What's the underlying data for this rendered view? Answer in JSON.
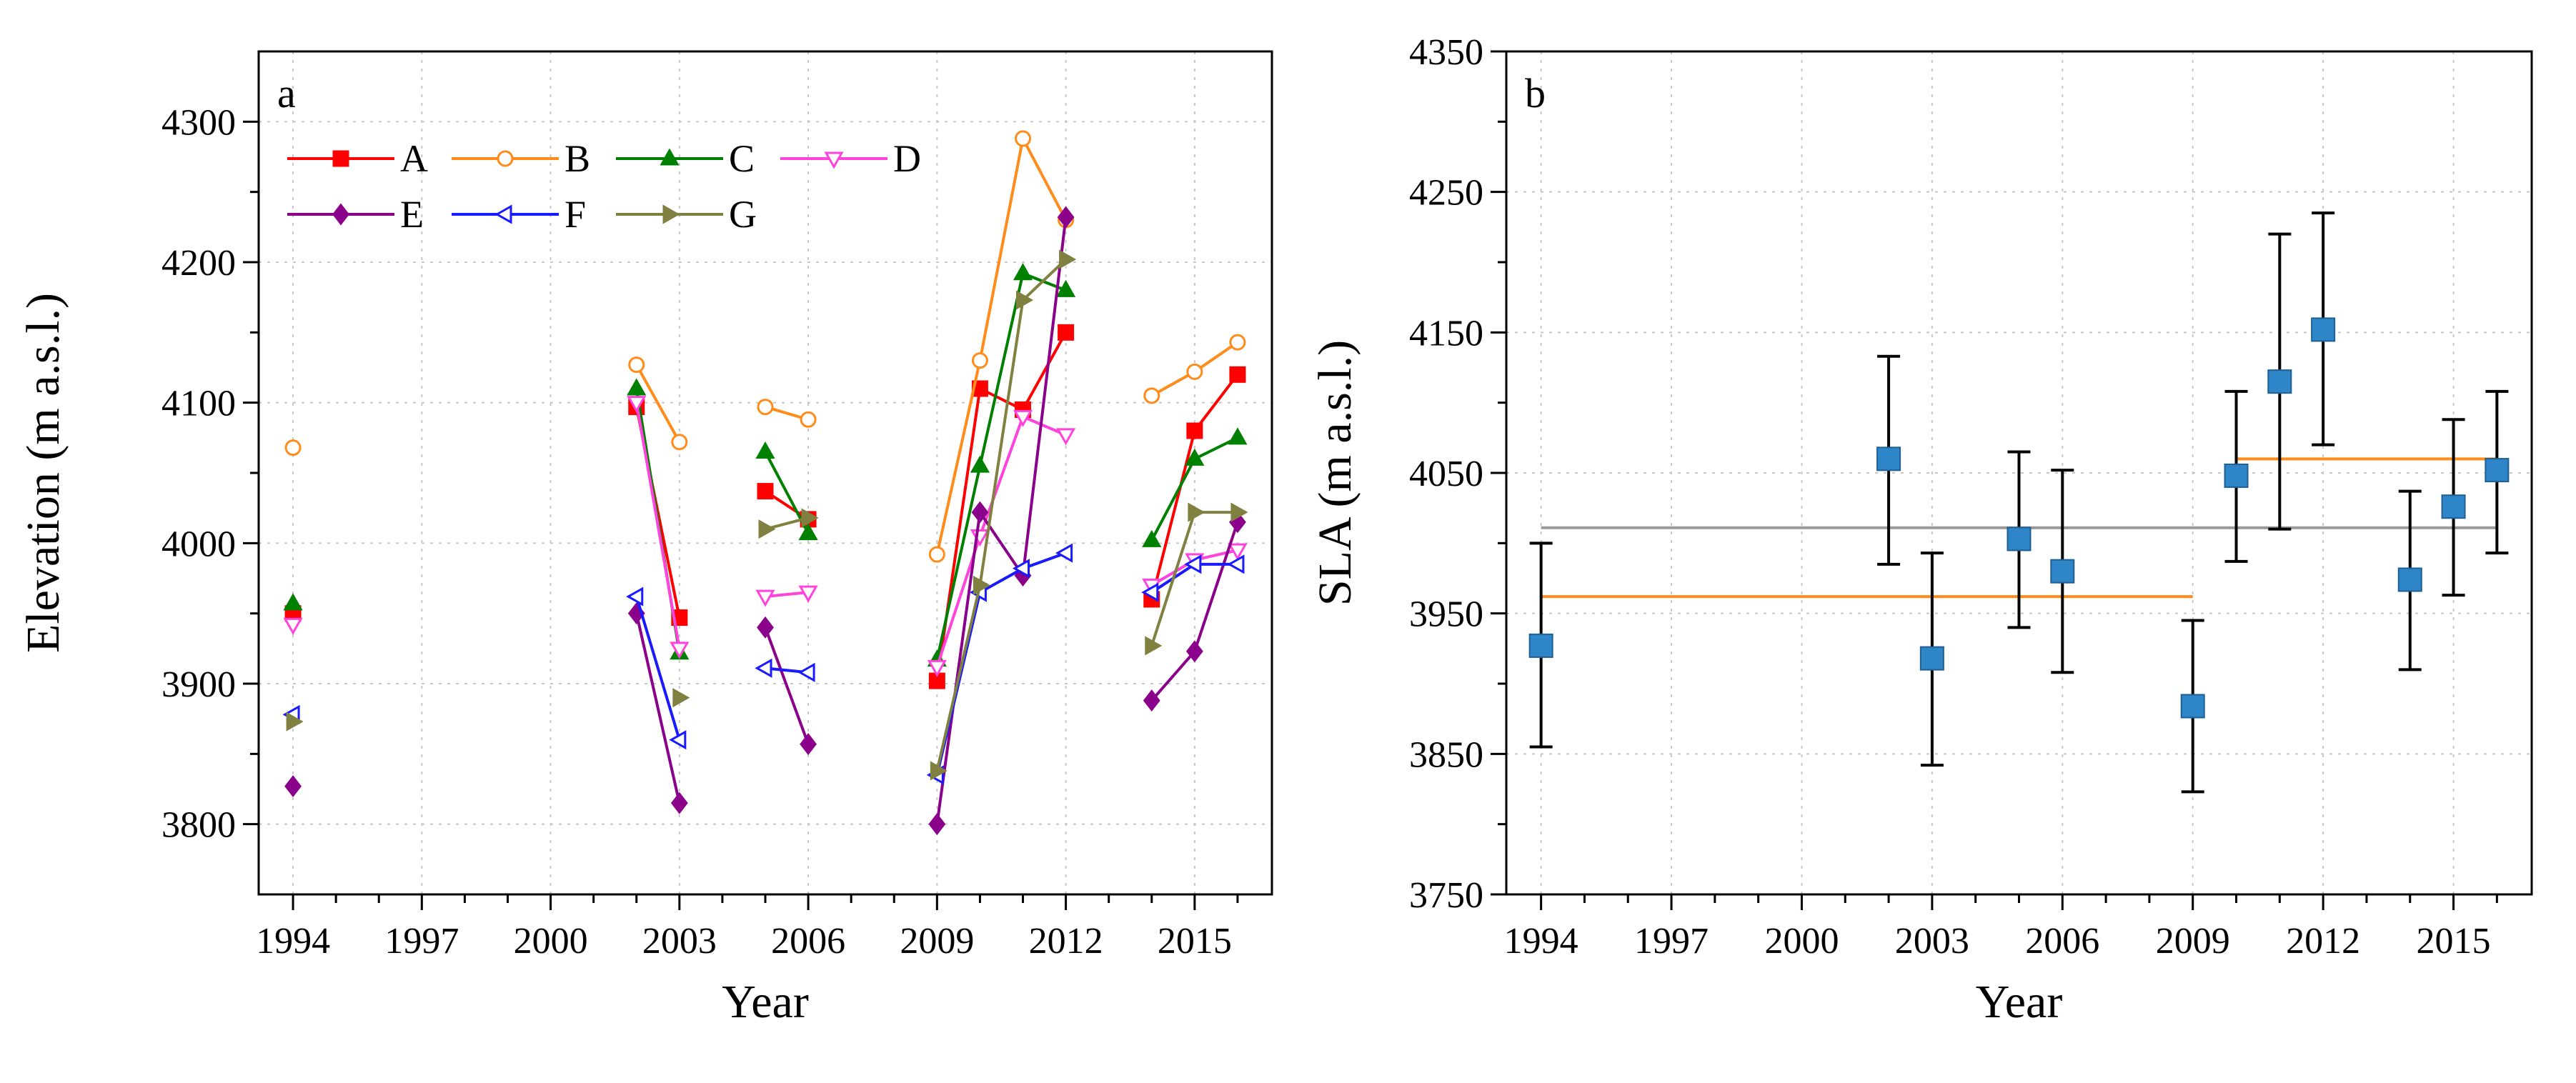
{
  "chart_data": [
    {
      "id": "a",
      "type": "line",
      "panel_label": "a",
      "xlabel": "Year",
      "ylabel": "Elevation (m a.s.l.)",
      "xlim": [
        1993.2,
        2016.8
      ],
      "ylim": [
        3750,
        4350
      ],
      "xticks": [
        1994,
        1997,
        2000,
        2003,
        2006,
        2009,
        2012,
        2015
      ],
      "yticks": [
        3800,
        3900,
        4000,
        4100,
        4200,
        4300
      ],
      "grid": true,
      "legend_position": "top-left",
      "series": [
        {
          "name": "A",
          "color": "#ff0000",
          "marker": "square-filled",
          "segments": [
            [
              [
                1994,
                3950
              ]
            ],
            [
              [
                2002,
                4097
              ],
              [
                2003,
                3947
              ]
            ],
            [
              [
                2005,
                4037
              ],
              [
                2006,
                4017
              ]
            ],
            [
              [
                2009,
                3902
              ],
              [
                2010,
                4110
              ],
              [
                2011,
                4095
              ],
              [
                2012,
                4150
              ]
            ],
            [
              [
                2014,
                3960
              ],
              [
                2015,
                4080
              ],
              [
                2016,
                4120
              ]
            ]
          ]
        },
        {
          "name": "B",
          "color": "#ff8c1a",
          "marker": "circle-open",
          "segments": [
            [
              [
                1994,
                4068
              ]
            ],
            [
              [
                2002,
                4127
              ],
              [
                2003,
                4072
              ]
            ],
            [
              [
                2005,
                4097
              ],
              [
                2006,
                4088
              ]
            ],
            [
              [
                2009,
                3992
              ],
              [
                2010,
                4130
              ],
              [
                2011,
                4288
              ],
              [
                2012,
                4230
              ]
            ],
            [
              [
                2014,
                4105
              ],
              [
                2015,
                4122
              ],
              [
                2016,
                4143
              ]
            ]
          ]
        },
        {
          "name": "C",
          "color": "#008000",
          "marker": "triangle-up-filled",
          "segments": [
            [
              [
                1994,
                3957
              ]
            ],
            [
              [
                2002,
                4110
              ],
              [
                2003,
                3922
              ]
            ],
            [
              [
                2005,
                4065
              ],
              [
                2006,
                4007
              ]
            ],
            [
              [
                2009,
                3917
              ],
              [
                2010,
                4055
              ],
              [
                2011,
                4192
              ],
              [
                2012,
                4180
              ]
            ],
            [
              [
                2014,
                4002
              ],
              [
                2015,
                4060
              ],
              [
                2016,
                4075
              ]
            ]
          ]
        },
        {
          "name": "D",
          "color": "#ff44dd",
          "marker": "triangle-down-open",
          "segments": [
            [
              [
                1994,
                3942
              ]
            ],
            [
              [
                2002,
                4100
              ],
              [
                2003,
                3925
              ]
            ],
            [
              [
                2005,
                3962
              ],
              [
                2006,
                3965
              ]
            ],
            [
              [
                2009,
                3912
              ],
              [
                2010,
                4005
              ],
              [
                2011,
                4090
              ],
              [
                2012,
                4077
              ]
            ],
            [
              [
                2014,
                3970
              ],
              [
                2015,
                3988
              ],
              [
                2016,
                3995
              ]
            ]
          ]
        },
        {
          "name": "E",
          "color": "#8b008b",
          "marker": "diamond-filled",
          "segments": [
            [
              [
                1994,
                3827
              ]
            ],
            [
              [
                2002,
                3950
              ],
              [
                2003,
                3815
              ]
            ],
            [
              [
                2005,
                3940
              ],
              [
                2006,
                3857
              ]
            ],
            [
              [
                2009,
                3800
              ],
              [
                2010,
                4022
              ],
              [
                2011,
                3977
              ],
              [
                2012,
                4232
              ]
            ],
            [
              [
                2014,
                3888
              ],
              [
                2015,
                3923
              ],
              [
                2016,
                4015
              ]
            ]
          ]
        },
        {
          "name": "F",
          "color": "#1a1aff",
          "marker": "triangle-left-open",
          "segments": [
            [
              [
                1994,
                3878
              ]
            ],
            [
              [
                2002,
                3962
              ],
              [
                2003,
                3860
              ]
            ],
            [
              [
                2005,
                3911
              ],
              [
                2006,
                3908
              ]
            ],
            [
              [
                2009,
                3835
              ],
              [
                2010,
                3965
              ],
              [
                2011,
                3982
              ],
              [
                2012,
                3993
              ]
            ],
            [
              [
                2014,
                3965
              ],
              [
                2015,
                3985
              ],
              [
                2016,
                3985
              ]
            ]
          ]
        },
        {
          "name": "G",
          "color": "#808040",
          "marker": "triangle-right-filled",
          "segments": [
            [
              [
                1994,
                3873
              ]
            ],
            [
              [
                2003,
                3890
              ]
            ],
            [
              [
                2005,
                4010
              ],
              [
                2006,
                4018
              ]
            ],
            [
              [
                2009,
                3838
              ],
              [
                2010,
                3970
              ],
              [
                2011,
                4173
              ],
              [
                2012,
                4202
              ]
            ],
            [
              [
                2014,
                3927
              ],
              [
                2015,
                4022
              ],
              [
                2016,
                4022
              ]
            ]
          ]
        }
      ]
    },
    {
      "id": "b",
      "type": "scatter",
      "panel_label": "b",
      "xlabel": "Year",
      "ylabel": "SLA (m a.s.l.)",
      "xlim": [
        1993.2,
        2016.8
      ],
      "ylim": [
        3750,
        4350
      ],
      "xticks": [
        1994,
        1997,
        2000,
        2003,
        2006,
        2009,
        2012,
        2015
      ],
      "yticks": [
        3750,
        3850,
        3950,
        4050,
        4150,
        4250,
        4350
      ],
      "grid": true,
      "marker_color": "#2e86c8",
      "points": [
        {
          "x": 1994,
          "y": 3927,
          "err_low": 3855,
          "err_high": 4000
        },
        {
          "x": 2002,
          "y": 4060,
          "err_low": 3985,
          "err_high": 4133
        },
        {
          "x": 2003,
          "y": 3918,
          "err_low": 3842,
          "err_high": 3993
        },
        {
          "x": 2005,
          "y": 4003,
          "err_low": 3940,
          "err_high": 4065
        },
        {
          "x": 2006,
          "y": 3980,
          "err_low": 3908,
          "err_high": 4052
        },
        {
          "x": 2009,
          "y": 3884,
          "err_low": 3823,
          "err_high": 3945
        },
        {
          "x": 2010,
          "y": 4048,
          "err_low": 3987,
          "err_high": 4108
        },
        {
          "x": 2011,
          "y": 4115,
          "err_low": 4010,
          "err_high": 4220
        },
        {
          "x": 2012,
          "y": 4152,
          "err_low": 4070,
          "err_high": 4235
        },
        {
          "x": 2014,
          "y": 3974,
          "err_low": 3910,
          "err_high": 4037
        },
        {
          "x": 2015,
          "y": 4026,
          "err_low": 3963,
          "err_high": 4088
        },
        {
          "x": 2016,
          "y": 4052,
          "err_low": 3993,
          "err_high": 4108
        }
      ],
      "reference_lines": [
        {
          "name": "mean-1994-2009",
          "color": "#ff8c1a",
          "x_start": 1994,
          "x_end": 2009,
          "y": 3962
        },
        {
          "name": "mean-2010-2016",
          "color": "#ff8c1a",
          "x_start": 2010,
          "x_end": 2016,
          "y": 4060
        },
        {
          "name": "overall-mean",
          "color": "#999999",
          "x_start": 1994,
          "x_end": 2016,
          "y": 4011
        }
      ]
    }
  ]
}
